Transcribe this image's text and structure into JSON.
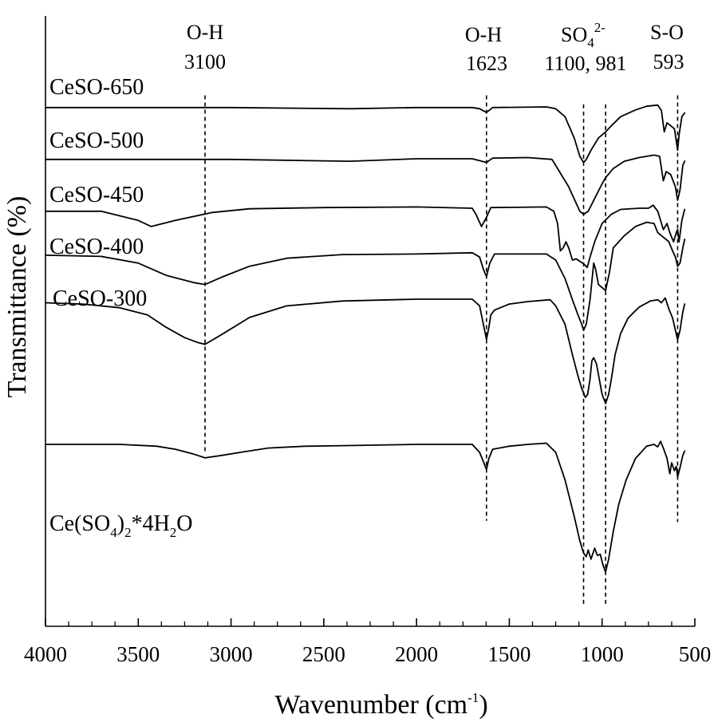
{
  "chart_data": {
    "type": "line",
    "title": "",
    "xlabel_main": "Wavenumber (cm",
    "xlabel_sup": "-1",
    "xlabel_close": ")",
    "ylabel": "Transmittance (%)",
    "xlim": [
      4000,
      500
    ],
    "xticks": [
      4000,
      3500,
      3000,
      2500,
      2000,
      1500,
      1000,
      500
    ],
    "ylim": [
      0,
      100
    ],
    "y_ticks_labeled": false,
    "grid": false,
    "series": [
      {
        "name": "CeSO-650",
        "label_text": "CeSO-650",
        "points": [
          [
            4000,
            85.0
          ],
          [
            3500,
            85.0
          ],
          [
            3000,
            85.0
          ],
          [
            2360,
            84.8
          ],
          [
            2000,
            85.0
          ],
          [
            1700,
            85.0
          ],
          [
            1660,
            84.8
          ],
          [
            1623,
            84.2
          ],
          [
            1590,
            85.0
          ],
          [
            1300,
            85.1
          ],
          [
            1250,
            84.8
          ],
          [
            1200,
            83.5
          ],
          [
            1150,
            80.0
          ],
          [
            1120,
            77.0
          ],
          [
            1100,
            76.0
          ],
          [
            1085,
            76.5
          ],
          [
            1060,
            78.0
          ],
          [
            1020,
            80.0
          ],
          [
            981,
            81.0
          ],
          [
            950,
            82.0
          ],
          [
            900,
            83.5
          ],
          [
            820,
            84.6
          ],
          [
            760,
            85.2
          ],
          [
            700,
            85.4
          ],
          [
            680,
            84.5
          ],
          [
            665,
            81.0
          ],
          [
            650,
            82.5
          ],
          [
            630,
            82.0
          ],
          [
            610,
            81.5
          ],
          [
            600,
            79.5
          ],
          [
            593,
            78.0
          ],
          [
            585,
            80.5
          ],
          [
            570,
            83.5
          ],
          [
            555,
            84.1
          ]
        ]
      },
      {
        "name": "CeSO-500",
        "label_text": "CeSO-500",
        "points": [
          [
            4000,
            76.5
          ],
          [
            3500,
            76.5
          ],
          [
            3000,
            76.5
          ],
          [
            2360,
            76.2
          ],
          [
            2000,
            76.6
          ],
          [
            1700,
            76.6
          ],
          [
            1623,
            76.0
          ],
          [
            1590,
            76.7
          ],
          [
            1400,
            76.8
          ],
          [
            1270,
            76.5
          ],
          [
            1250,
            75.5
          ],
          [
            1220,
            74.0
          ],
          [
            1180,
            72.0
          ],
          [
            1150,
            70.0
          ],
          [
            1120,
            68.0
          ],
          [
            1100,
            67.5
          ],
          [
            1075,
            68.0
          ],
          [
            1050,
            69.5
          ],
          [
            1000,
            72.5
          ],
          [
            981,
            73.5
          ],
          [
            940,
            75.0
          ],
          [
            880,
            76.2
          ],
          [
            800,
            76.8
          ],
          [
            720,
            77.2
          ],
          [
            690,
            77.0
          ],
          [
            670,
            73.0
          ],
          [
            655,
            74.5
          ],
          [
            630,
            74.0
          ],
          [
            605,
            72.0
          ],
          [
            593,
            69.8
          ],
          [
            580,
            71.5
          ],
          [
            565,
            75.5
          ],
          [
            555,
            76.2
          ]
        ]
      },
      {
        "name": "CeSO-450",
        "label_text": "CeSO-450",
        "points": [
          [
            4000,
            68.0
          ],
          [
            3700,
            68.0
          ],
          [
            3500,
            66.5
          ],
          [
            3430,
            65.5
          ],
          [
            3300,
            66.5
          ],
          [
            3100,
            67.8
          ],
          [
            2900,
            68.4
          ],
          [
            2500,
            68.6
          ],
          [
            2000,
            68.7
          ],
          [
            1700,
            68.5
          ],
          [
            1680,
            67.5
          ],
          [
            1650,
            65.5
          ],
          [
            1623,
            67.0
          ],
          [
            1600,
            68.6
          ],
          [
            1300,
            68.7
          ],
          [
            1260,
            68.0
          ],
          [
            1240,
            66.0
          ],
          [
            1225,
            61.5
          ],
          [
            1210,
            62.0
          ],
          [
            1195,
            63.0
          ],
          [
            1180,
            62.0
          ],
          [
            1160,
            60.0
          ],
          [
            1140,
            60.2
          ],
          [
            1120,
            59.8
          ],
          [
            1100,
            59.4
          ],
          [
            1080,
            58.8
          ],
          [
            1065,
            60.5
          ],
          [
            1040,
            63.0
          ],
          [
            1000,
            66.0
          ],
          [
            950,
            67.5
          ],
          [
            900,
            68.3
          ],
          [
            800,
            68.5
          ],
          [
            750,
            68.5
          ],
          [
            725,
            69.0
          ],
          [
            700,
            68.0
          ],
          [
            670,
            65.0
          ],
          [
            650,
            66.0
          ],
          [
            635,
            64.5
          ],
          [
            615,
            63.0
          ],
          [
            600,
            64.5
          ],
          [
            593,
            65.0
          ],
          [
            585,
            63.0
          ],
          [
            570,
            66.5
          ],
          [
            555,
            68.3
          ]
        ]
      },
      {
        "name": "CeSO-400",
        "label_text": "CeSO-400",
        "points": [
          [
            4000,
            60.8
          ],
          [
            3700,
            60.6
          ],
          [
            3500,
            59.5
          ],
          [
            3350,
            57.5
          ],
          [
            3200,
            56.3
          ],
          [
            3140,
            56.0
          ],
          [
            3050,
            57.2
          ],
          [
            2900,
            59.0
          ],
          [
            2700,
            60.3
          ],
          [
            2400,
            60.9
          ],
          [
            2000,
            61.0
          ],
          [
            1700,
            61.2
          ],
          [
            1660,
            60.5
          ],
          [
            1640,
            58.5
          ],
          [
            1623,
            57.3
          ],
          [
            1605,
            59.5
          ],
          [
            1580,
            61.0
          ],
          [
            1400,
            61.0
          ],
          [
            1300,
            61.0
          ],
          [
            1250,
            60.0
          ],
          [
            1200,
            57.0
          ],
          [
            1160,
            53.5
          ],
          [
            1130,
            51.0
          ],
          [
            1110,
            49.5
          ],
          [
            1100,
            48.5
          ],
          [
            1085,
            49.5
          ],
          [
            1065,
            53.5
          ],
          [
            1045,
            59.5
          ],
          [
            1035,
            58.5
          ],
          [
            1020,
            56.0
          ],
          [
            1000,
            55.5
          ],
          [
            981,
            55.0
          ],
          [
            960,
            58.0
          ],
          [
            940,
            62.0
          ],
          [
            880,
            64.0
          ],
          [
            820,
            65.5
          ],
          [
            760,
            66.2
          ],
          [
            720,
            66.0
          ],
          [
            700,
            64.5
          ],
          [
            680,
            64.0
          ],
          [
            660,
            63.5
          ],
          [
            640,
            63.0
          ],
          [
            620,
            61.5
          ],
          [
            605,
            60.5
          ],
          [
            593,
            59.0
          ],
          [
            580,
            59.5
          ],
          [
            565,
            62.0
          ],
          [
            555,
            63.4
          ]
        ]
      },
      {
        "name": "CeSO-300",
        "label_text": "CeSO-300",
        "points": [
          [
            4000,
            53.0
          ],
          [
            3800,
            52.8
          ],
          [
            3600,
            52.2
          ],
          [
            3450,
            51.0
          ],
          [
            3350,
            49.0
          ],
          [
            3250,
            47.3
          ],
          [
            3180,
            46.5
          ],
          [
            3140,
            46.2
          ],
          [
            3050,
            47.8
          ],
          [
            2900,
            50.6
          ],
          [
            2700,
            52.5
          ],
          [
            2400,
            53.3
          ],
          [
            2000,
            53.6
          ],
          [
            1700,
            53.6
          ],
          [
            1660,
            52.5
          ],
          [
            1640,
            49.5
          ],
          [
            1623,
            47.0
          ],
          [
            1610,
            49.0
          ],
          [
            1600,
            51.0
          ],
          [
            1580,
            51.8
          ],
          [
            1500,
            52.8
          ],
          [
            1400,
            53.2
          ],
          [
            1280,
            53.5
          ],
          [
            1250,
            52.5
          ],
          [
            1200,
            49.5
          ],
          [
            1160,
            44.5
          ],
          [
            1130,
            41.0
          ],
          [
            1110,
            39.0
          ],
          [
            1090,
            37.5
          ],
          [
            1078,
            38.0
          ],
          [
            1065,
            40.5
          ],
          [
            1055,
            43.5
          ],
          [
            1045,
            44.0
          ],
          [
            1030,
            43.0
          ],
          [
            1015,
            40.5
          ],
          [
            1000,
            38.0
          ],
          [
            981,
            36.5
          ],
          [
            965,
            38.0
          ],
          [
            950,
            40.5
          ],
          [
            930,
            44.5
          ],
          [
            900,
            48.0
          ],
          [
            860,
            50.5
          ],
          [
            800,
            52.3
          ],
          [
            740,
            53.3
          ],
          [
            700,
            53.5
          ],
          [
            680,
            53.0
          ],
          [
            660,
            53.8
          ],
          [
            640,
            52.0
          ],
          [
            620,
            50.5
          ],
          [
            605,
            48.5
          ],
          [
            593,
            47.0
          ],
          [
            580,
            48.5
          ],
          [
            565,
            51.5
          ],
          [
            555,
            52.8
          ]
        ]
      },
      {
        "name": "Ce(SO4)2*4H2O",
        "label_parts": {
          "a": "Ce(SO",
          "sub1": "4",
          "b": ")",
          "sub2": "2",
          "c": "*4H",
          "sub3": "2",
          "d": "O"
        },
        "points": [
          [
            4000,
            29.8
          ],
          [
            3600,
            29.8
          ],
          [
            3400,
            29.5
          ],
          [
            3300,
            29.0
          ],
          [
            3200,
            28.2
          ],
          [
            3140,
            27.6
          ],
          [
            3050,
            28.0
          ],
          [
            2950,
            28.5
          ],
          [
            2800,
            29.2
          ],
          [
            2600,
            29.5
          ],
          [
            2400,
            29.6
          ],
          [
            2000,
            29.8
          ],
          [
            1700,
            29.8
          ],
          [
            1660,
            28.5
          ],
          [
            1640,
            27.0
          ],
          [
            1623,
            25.7
          ],
          [
            1610,
            27.5
          ],
          [
            1590,
            29.0
          ],
          [
            1500,
            29.5
          ],
          [
            1400,
            29.8
          ],
          [
            1300,
            30.0
          ],
          [
            1250,
            28.5
          ],
          [
            1200,
            24.0
          ],
          [
            1150,
            18.0
          ],
          [
            1120,
            14.0
          ],
          [
            1100,
            12.0
          ],
          [
            1085,
            11.4
          ],
          [
            1075,
            12.5
          ],
          [
            1060,
            11.0
          ],
          [
            1040,
            12.8
          ],
          [
            1025,
            11.6
          ],
          [
            1010,
            11.8
          ],
          [
            995,
            10.0
          ],
          [
            981,
            8.9
          ],
          [
            965,
            11.0
          ],
          [
            940,
            15.5
          ],
          [
            910,
            20.0
          ],
          [
            870,
            24.0
          ],
          [
            820,
            27.5
          ],
          [
            760,
            29.5
          ],
          [
            720,
            29.8
          ],
          [
            700,
            29.4
          ],
          [
            685,
            30.3
          ],
          [
            670,
            29.2
          ],
          [
            650,
            27.5
          ],
          [
            635,
            25.0
          ],
          [
            625,
            26.8
          ],
          [
            610,
            25.5
          ],
          [
            600,
            26.2
          ],
          [
            593,
            24.5
          ],
          [
            580,
            26.0
          ],
          [
            565,
            28.0
          ],
          [
            555,
            28.7
          ]
        ]
      }
    ],
    "annotations": [
      {
        "line1": "O-H",
        "line2": "3100",
        "x": 3140,
        "y_top": 87.0,
        "y_bottom": 28.4
      },
      {
        "line1": "O-H",
        "line2": "1623",
        "x": 1623,
        "y_top": 87.0,
        "y_bottom": 17.3
      },
      {
        "line1_main": "SO",
        "line1_sub": "4",
        "line1_sup": "2-",
        "line2": "1100, 981",
        "x_values": [
          1100,
          981
        ],
        "y_top": 85.5,
        "y_bottom": 3.2
      },
      {
        "line1": "S-O",
        "line2": "593",
        "x": 593,
        "y_top": 87.0,
        "y_bottom": 17.1
      }
    ]
  }
}
